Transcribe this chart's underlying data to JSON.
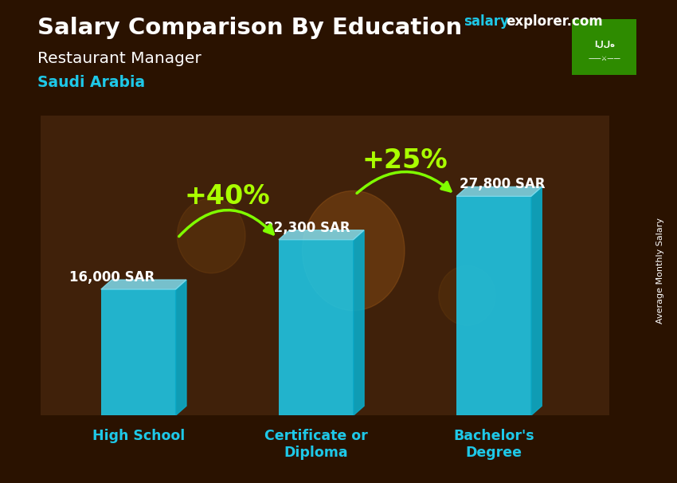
{
  "title_part1": "Salary Comparison By Education",
  "subtitle": "Restaurant Manager",
  "subtitle2": "Saudi Arabia",
  "ylabel": "Average Monthly Salary",
  "categories": [
    "High School",
    "Certificate or\nDiploma",
    "Bachelor's\nDegree"
  ],
  "values": [
    16000,
    22300,
    27800
  ],
  "labels": [
    "16,000 SAR",
    "22,300 SAR",
    "27,800 SAR"
  ],
  "bar_color": "#1EC8E8",
  "bar_right_color": "#0AAAC8",
  "bar_top_color": "#80DDEF",
  "title_color": "#FFFFFF",
  "subtitle_color": "#FFFFFF",
  "subtitle2_color": "#1EC8E8",
  "label_color": "#FFFFFF",
  "xtick_color": "#1EC8E8",
  "watermark_salary_color": "#1EC8E8",
  "watermark_explorer_color": "#FFFFFF",
  "arrow_color": "#80FF00",
  "pct_color": "#AAFF00",
  "pct1": "+40%",
  "pct2": "+25%",
  "flag_bg": "#2E8B00",
  "bg_dark": "#2A1200",
  "figsize": [
    8.5,
    6.06
  ],
  "dpi": 100
}
